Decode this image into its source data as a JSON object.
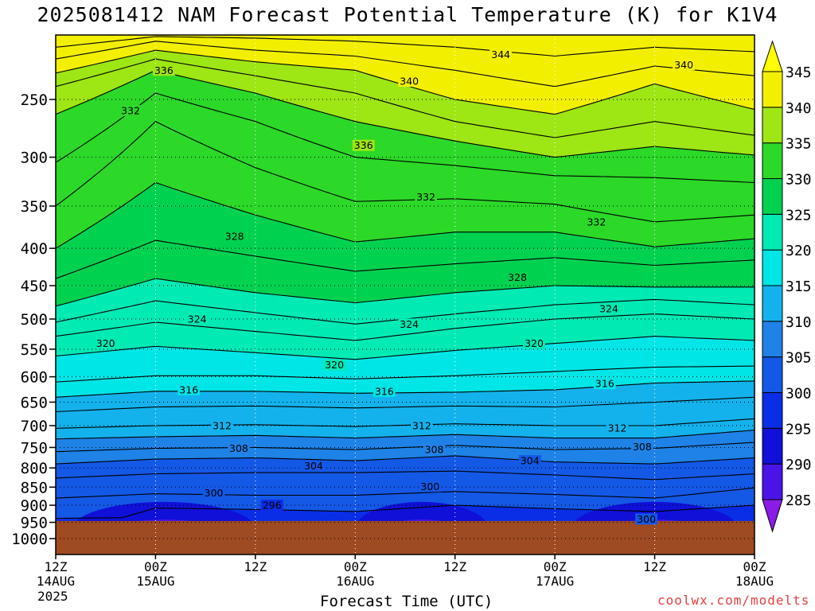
{
  "title": "2025081412 NAM Forecast Potential Temperature (K) for K1V4",
  "credit": "coolwx.com/modelts",
  "chart_data": {
    "type": "contour",
    "title": "2025081412 NAM Forecast Potential Temperature (K) for K1V4",
    "xlabel": "Forecast Time (UTC)",
    "ylabel": "",
    "y_scale": "log",
    "y_inverted": true,
    "y_ticks": [
      250,
      300,
      350,
      400,
      450,
      500,
      550,
      600,
      650,
      700,
      750,
      800,
      850,
      900,
      950,
      1000
    ],
    "x_ticks": [
      {
        "hour": 0,
        "line1": "12Z",
        "line2": "14AUG"
      },
      {
        "hour": 12,
        "line1": "00Z",
        "line2": "15AUG"
      },
      {
        "hour": 24,
        "line1": "12Z",
        "line2": ""
      },
      {
        "hour": 36,
        "line1": "00Z",
        "line2": "16AUG"
      },
      {
        "hour": 48,
        "line1": "12Z",
        "line2": ""
      },
      {
        "hour": 60,
        "line1": "00Z",
        "line2": "17AUG"
      },
      {
        "hour": 72,
        "line1": "12Z",
        "line2": ""
      },
      {
        "hour": 84,
        "line1": "00Z",
        "line2": "18AUG"
      }
    ],
    "x_year": "2025",
    "xlim": [
      0,
      84
    ],
    "colorbar": {
      "levels": [
        285,
        290,
        295,
        300,
        305,
        310,
        315,
        320,
        325,
        330,
        335,
        340,
        345
      ],
      "colors": [
        "#8a1ce6",
        "#4a14e8",
        "#1010d8",
        "#0a2ee6",
        "#1458e6",
        "#1e82e6",
        "#14b2ec",
        "#00e6e6",
        "#00eab4",
        "#00d250",
        "#2cd828",
        "#9ee614",
        "#f2f000",
        "#ffff00"
      ]
    },
    "ground_color": "#9e4a22",
    "surface_pressure": 975,
    "contour_interval": 2,
    "isentropes": [
      {
        "theta": 298,
        "p": [
          [
            0,
            975
          ],
          [
            12,
            975
          ],
          [
            24,
            962
          ],
          [
            36,
            970
          ],
          [
            48,
            966
          ],
          [
            60,
            975
          ],
          [
            72,
            968
          ],
          [
            84,
            960
          ]
        ]
      },
      {
        "theta": 300,
        "p": [
          [
            0,
            938
          ],
          [
            8,
            936
          ],
          [
            12,
            908
          ],
          [
            24,
            912
          ],
          [
            36,
            918
          ],
          [
            48,
            900
          ],
          [
            60,
            910
          ],
          [
            72,
            918
          ],
          [
            84,
            900
          ]
        ]
      },
      {
        "theta": 302,
        "p": [
          [
            0,
            880
          ],
          [
            12,
            868
          ],
          [
            24,
            872
          ],
          [
            36,
            872
          ],
          [
            48,
            862
          ],
          [
            60,
            870
          ],
          [
            72,
            880
          ],
          [
            84,
            852
          ]
        ]
      },
      {
        "theta": 304,
        "p": [
          [
            0,
            826
          ],
          [
            12,
            815
          ],
          [
            24,
            812
          ],
          [
            36,
            812
          ],
          [
            48,
            808
          ],
          [
            60,
            818
          ],
          [
            72,
            830
          ],
          [
            84,
            815
          ]
        ]
      },
      {
        "theta": 306,
        "p": [
          [
            0,
            790
          ],
          [
            12,
            778
          ],
          [
            24,
            775
          ],
          [
            36,
            782
          ],
          [
            48,
            770
          ],
          [
            60,
            785
          ],
          [
            72,
            790
          ],
          [
            84,
            775
          ]
        ]
      },
      {
        "theta": 308,
        "p": [
          [
            0,
            760
          ],
          [
            12,
            752
          ],
          [
            24,
            750
          ],
          [
            36,
            755
          ],
          [
            48,
            745
          ],
          [
            60,
            755
          ],
          [
            72,
            752
          ],
          [
            84,
            738
          ]
        ]
      },
      {
        "theta": 310,
        "p": [
          [
            0,
            730
          ],
          [
            12,
            725
          ],
          [
            24,
            722
          ],
          [
            36,
            728
          ],
          [
            48,
            720
          ],
          [
            60,
            728
          ],
          [
            72,
            728
          ],
          [
            84,
            710
          ]
        ]
      },
      {
        "theta": 312,
        "p": [
          [
            0,
            706
          ],
          [
            12,
            700
          ],
          [
            24,
            698
          ],
          [
            36,
            702
          ],
          [
            48,
            696
          ],
          [
            60,
            700
          ],
          [
            72,
            700
          ],
          [
            84,
            685
          ]
        ]
      },
      {
        "theta": 314,
        "p": [
          [
            0,
            670
          ],
          [
            12,
            660
          ],
          [
            24,
            658
          ],
          [
            36,
            662
          ],
          [
            48,
            658
          ],
          [
            60,
            660
          ],
          [
            72,
            650
          ],
          [
            84,
            640
          ]
        ]
      },
      {
        "theta": 316,
        "p": [
          [
            0,
            640
          ],
          [
            12,
            628
          ],
          [
            24,
            628
          ],
          [
            36,
            632
          ],
          [
            48,
            630
          ],
          [
            60,
            625
          ],
          [
            72,
            612
          ],
          [
            84,
            608
          ]
        ]
      },
      {
        "theta": 318,
        "p": [
          [
            0,
            610
          ],
          [
            12,
            598
          ],
          [
            24,
            598
          ],
          [
            36,
            604
          ],
          [
            48,
            598
          ],
          [
            60,
            590
          ],
          [
            72,
            582
          ],
          [
            84,
            580
          ]
        ]
      },
      {
        "theta": 320,
        "p": [
          [
            0,
            562
          ],
          [
            12,
            545
          ],
          [
            24,
            556
          ],
          [
            36,
            568
          ],
          [
            48,
            552
          ],
          [
            60,
            540
          ],
          [
            72,
            528
          ],
          [
            84,
            535
          ]
        ]
      },
      {
        "theta": 322,
        "p": [
          [
            0,
            528
          ],
          [
            12,
            505
          ],
          [
            24,
            520
          ],
          [
            36,
            535
          ],
          [
            48,
            515
          ],
          [
            60,
            500
          ],
          [
            72,
            492
          ],
          [
            84,
            500
          ]
        ]
      },
      {
        "theta": 324,
        "p": [
          [
            0,
            505
          ],
          [
            12,
            472
          ],
          [
            24,
            490
          ],
          [
            36,
            508
          ],
          [
            48,
            492
          ],
          [
            60,
            478
          ],
          [
            72,
            470
          ],
          [
            84,
            478
          ]
        ]
      },
      {
        "theta": 326,
        "p": [
          [
            0,
            480
          ],
          [
            12,
            440
          ],
          [
            24,
            460
          ],
          [
            36,
            475
          ],
          [
            48,
            460
          ],
          [
            60,
            450
          ],
          [
            72,
            452
          ],
          [
            84,
            452
          ]
        ]
      },
      {
        "theta": 328,
        "p": [
          [
            0,
            440
          ],
          [
            12,
            390
          ],
          [
            24,
            410
          ],
          [
            36,
            430
          ],
          [
            48,
            420
          ],
          [
            60,
            412
          ],
          [
            72,
            422
          ],
          [
            84,
            415
          ]
        ]
      },
      {
        "theta": 330,
        "p": [
          [
            0,
            400
          ],
          [
            12,
            325
          ],
          [
            24,
            360
          ],
          [
            36,
            392
          ],
          [
            48,
            380
          ],
          [
            60,
            380
          ],
          [
            72,
            398
          ],
          [
            84,
            388
          ]
        ]
      },
      {
        "theta": 332,
        "p": [
          [
            0,
            350
          ],
          [
            12,
            268
          ],
          [
            24,
            310
          ],
          [
            36,
            345
          ],
          [
            48,
            342
          ],
          [
            60,
            348
          ],
          [
            72,
            368
          ],
          [
            84,
            360
          ]
        ]
      },
      {
        "theta": 334,
        "p": [
          [
            0,
            305
          ],
          [
            12,
            245
          ],
          [
            24,
            268
          ],
          [
            36,
            300
          ],
          [
            48,
            308
          ],
          [
            60,
            318
          ],
          [
            72,
            320
          ],
          [
            84,
            325
          ]
        ]
      },
      {
        "theta": 336,
        "p": [
          [
            0,
            262
          ],
          [
            12,
            228
          ],
          [
            24,
            245
          ],
          [
            36,
            268
          ],
          [
            48,
            285
          ],
          [
            60,
            300
          ],
          [
            72,
            290
          ],
          [
            84,
            298
          ]
        ]
      },
      {
        "theta": 338,
        "p": [
          [
            0,
            240
          ],
          [
            12,
            220
          ],
          [
            24,
            232
          ],
          [
            36,
            245
          ],
          [
            48,
            268
          ],
          [
            60,
            282
          ],
          [
            72,
            268
          ],
          [
            84,
            280
          ]
        ]
      },
      {
        "theta": 340,
        "p": [
          [
            0,
            230
          ],
          [
            12,
            214
          ],
          [
            24,
            222
          ],
          [
            36,
            228
          ],
          [
            48,
            250
          ],
          [
            60,
            262
          ],
          [
            72,
            238
          ],
          [
            84,
            258
          ]
        ]
      },
      {
        "theta": 342,
        "p": [
          [
            0,
            220
          ],
          [
            12,
            208
          ],
          [
            24,
            214
          ],
          [
            36,
            218
          ],
          [
            48,
            228
          ],
          [
            60,
            240
          ],
          [
            72,
            225
          ],
          [
            84,
            232
          ]
        ]
      },
      {
        "theta": 344,
        "p": [
          [
            0,
            212
          ],
          [
            12,
            205
          ],
          [
            24,
            206
          ],
          [
            36,
            208
          ],
          [
            48,
            212
          ],
          [
            60,
            218
          ],
          [
            72,
            212
          ],
          [
            84,
            215
          ]
        ]
      }
    ],
    "contour_labels": [
      {
        "text": "336",
        "hour": 13,
        "p": 228
      },
      {
        "text": "332",
        "hour": 9,
        "p": 259
      },
      {
        "text": "344",
        "hour": 53.5,
        "p": 217
      },
      {
        "text": "340",
        "hour": 42.5,
        "p": 236
      },
      {
        "text": "340",
        "hour": 75.5,
        "p": 224
      },
      {
        "text": "336",
        "hour": 37,
        "p": 289
      },
      {
        "text": "332",
        "hour": 44.5,
        "p": 340
      },
      {
        "text": "332",
        "hour": 65,
        "p": 368
      },
      {
        "text": "328",
        "hour": 21.5,
        "p": 385
      },
      {
        "text": "328",
        "hour": 55.5,
        "p": 438
      },
      {
        "text": "324",
        "hour": 66.5,
        "p": 484
      },
      {
        "text": "324",
        "hour": 17,
        "p": 500
      },
      {
        "text": "324",
        "hour": 42.5,
        "p": 508
      },
      {
        "text": "320",
        "hour": 6,
        "p": 540
      },
      {
        "text": "320",
        "hour": 57.5,
        "p": 540
      },
      {
        "text": "320",
        "hour": 33.5,
        "p": 578
      },
      {
        "text": "316",
        "hour": 66,
        "p": 613
      },
      {
        "text": "316",
        "hour": 16,
        "p": 625
      },
      {
        "text": "316",
        "hour": 39.5,
        "p": 628
      },
      {
        "text": "312",
        "hour": 20,
        "p": 700
      },
      {
        "text": "312",
        "hour": 44,
        "p": 700
      },
      {
        "text": "312",
        "hour": 67.5,
        "p": 705
      },
      {
        "text": "308",
        "hour": 22,
        "p": 752
      },
      {
        "text": "308",
        "hour": 45.5,
        "p": 755
      },
      {
        "text": "308",
        "hour": 70.5,
        "p": 748
      },
      {
        "text": "304",
        "hour": 31,
        "p": 795
      },
      {
        "text": "304",
        "hour": 57,
        "p": 782
      },
      {
        "text": "300",
        "hour": 19,
        "p": 865
      },
      {
        "text": "300",
        "hour": 45,
        "p": 848
      },
      {
        "text": "300",
        "hour": 71,
        "p": 940
      },
      {
        "text": "296",
        "hour": 26,
        "p": 900
      }
    ]
  }
}
